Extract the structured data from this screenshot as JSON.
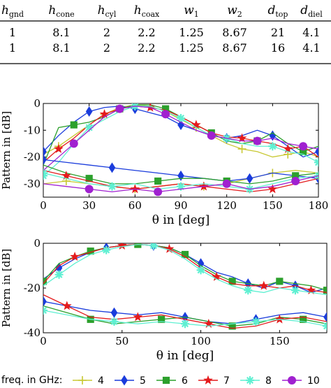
{
  "table": {
    "headers": [
      {
        "base": "h",
        "sub": "gnd"
      },
      {
        "base": "h",
        "sub": "cone"
      },
      {
        "base": "h",
        "sub": "cyl"
      },
      {
        "base": "h",
        "sub": "coax"
      },
      {
        "base": "w",
        "sub": "1"
      },
      {
        "base": "w",
        "sub": "2"
      },
      {
        "base": "d",
        "sub": "top"
      },
      {
        "base": "d",
        "sub": "diel"
      }
    ],
    "rows": [
      [
        "1",
        "8.1",
        "2",
        "2.2",
        "1.25",
        "8.67",
        "21",
        "4.1"
      ],
      [
        "1",
        "8.1",
        "2",
        "2.2",
        "1.25",
        "8.67",
        "16",
        "4.1"
      ]
    ]
  },
  "legend": {
    "label": "freq. in GHz:",
    "entries": [
      {
        "label": "4",
        "color": "#c8c832",
        "marker": "plus"
      },
      {
        "label": "5",
        "color": "#1a3cdc",
        "marker": "diamond"
      },
      {
        "label": "6",
        "color": "#2ca02c",
        "marker": "square"
      },
      {
        "label": "7",
        "color": "#e41a1c",
        "marker": "star"
      },
      {
        "label": "8",
        "color": "#5ff0d2",
        "marker": "asterisk"
      },
      {
        "label": "10",
        "color": "#a020d0",
        "marker": "circle"
      }
    ]
  },
  "chart_data": [
    {
      "type": "line",
      "xlabel": "θ in [deg]",
      "ylabel": "Pattern in [dB]",
      "xlim": [
        0,
        180
      ],
      "ylim": [
        -35,
        0
      ],
      "xticks": [
        0,
        30,
        60,
        90,
        120,
        150,
        180
      ],
      "yticks": [
        0,
        -10,
        -20,
        -30
      ],
      "grid": false,
      "series": [
        {
          "name": "4",
          "color": "#c8c832",
          "marker": "plus",
          "x": [
            0,
            10,
            20,
            30,
            40,
            50,
            60,
            70,
            80,
            90,
            100,
            110,
            120,
            130,
            140,
            150,
            160,
            170,
            180
          ],
          "y": [
            -19,
            -16,
            -12,
            -8,
            -4,
            -1.5,
            -0.5,
            -1,
            -3,
            -6,
            -9,
            -12,
            -15,
            -17,
            -18,
            -20,
            -19,
            -18,
            -20
          ]
        },
        {
          "name": "5",
          "color": "#1a3cdc",
          "marker": "diamond",
          "x": [
            0,
            10,
            20,
            30,
            40,
            50,
            60,
            70,
            80,
            90,
            100,
            110,
            120,
            130,
            140,
            150,
            160,
            170,
            180
          ],
          "y": [
            -18,
            -12,
            -7,
            -3,
            -1.5,
            -1,
            -2,
            -3.5,
            -5,
            -8,
            -10,
            -12,
            -13,
            -12,
            -10,
            -12,
            -16,
            -20,
            -18
          ]
        },
        {
          "name": "6",
          "color": "#2ca02c",
          "marker": "square",
          "x": [
            0,
            10,
            20,
            30,
            40,
            50,
            60,
            70,
            80,
            90,
            100,
            110,
            120,
            130,
            140,
            150,
            160,
            170,
            180
          ],
          "y": [
            -23,
            -9,
            -8,
            -7,
            -5,
            -2,
            -0.5,
            -0.5,
            -2,
            -5,
            -8,
            -11,
            -14,
            -15,
            -14,
            -11,
            -15,
            -18,
            -16
          ]
        },
        {
          "name": "7",
          "color": "#e41a1c",
          "marker": "star",
          "x": [
            0,
            10,
            20,
            30,
            40,
            50,
            60,
            70,
            80,
            90,
            100,
            110,
            120,
            130,
            140,
            150,
            160,
            170,
            180
          ],
          "y": [
            -22,
            -17,
            -13,
            -8,
            -4,
            -2,
            -1,
            -1.5,
            -2.5,
            -5,
            -8,
            -11,
            -12.5,
            -13,
            -14,
            -15,
            -17,
            -16,
            -20
          ]
        },
        {
          "name": "8",
          "color": "#5ff0d2",
          "marker": "asterisk",
          "x": [
            0,
            10,
            20,
            30,
            40,
            50,
            60,
            70,
            80,
            90,
            100,
            110,
            120,
            130,
            140,
            150,
            160,
            170,
            180
          ],
          "y": [
            -27,
            -22,
            -15,
            -9,
            -6,
            -3,
            -1,
            -1,
            -3,
            -5.5,
            -9,
            -12,
            -13,
            -15,
            -16,
            -16,
            -18,
            -19,
            -22
          ]
        },
        {
          "name": "10",
          "color": "#a020d0",
          "marker": "circle",
          "x": [
            0,
            10,
            20,
            30,
            40,
            50,
            60,
            70,
            80,
            90,
            100,
            110,
            120,
            130,
            140,
            150,
            160,
            170,
            180
          ],
          "y": [
            -25,
            -20,
            -15,
            -10,
            -5,
            -2,
            -1,
            -1.5,
            -4,
            -7,
            -10,
            -12,
            -13,
            -14,
            -14,
            -13,
            -15,
            -16,
            -17
          ]
        },
        {
          "name": "4",
          "color": "#c8c832",
          "marker": "plus",
          "x": [
            0,
            15,
            30,
            45,
            60,
            75,
            90,
            105,
            120,
            135,
            150,
            165,
            180
          ],
          "y": [
            -30,
            -29,
            -30,
            -31,
            -32,
            -31,
            -30,
            -31,
            -30,
            -28,
            -26,
            -25,
            -26
          ]
        },
        {
          "name": "5",
          "color": "#1a3cdc",
          "marker": "diamond",
          "x": [
            0,
            15,
            30,
            45,
            60,
            75,
            90,
            105,
            120,
            135,
            150,
            165,
            180
          ],
          "y": [
            -21,
            -22,
            -23,
            -24,
            -25,
            -26,
            -27,
            -28,
            -29,
            -28,
            -26,
            -27,
            -28
          ]
        },
        {
          "name": "6",
          "color": "#2ca02c",
          "marker": "square",
          "x": [
            0,
            15,
            30,
            45,
            60,
            75,
            90,
            105,
            120,
            135,
            150,
            165,
            180
          ],
          "y": [
            -23,
            -26,
            -28,
            -30,
            -30,
            -29,
            -28,
            -28,
            -29,
            -30,
            -29,
            -27,
            -26
          ]
        },
        {
          "name": "7",
          "color": "#e41a1c",
          "marker": "star",
          "x": [
            0,
            15,
            30,
            45,
            60,
            75,
            90,
            105,
            120,
            135,
            150,
            165,
            180
          ],
          "y": [
            -25,
            -27,
            -29,
            -31,
            -32,
            -31,
            -30,
            -31,
            -32,
            -33,
            -32,
            -30,
            -28
          ]
        },
        {
          "name": "8",
          "color": "#5ff0d2",
          "marker": "asterisk",
          "x": [
            0,
            15,
            30,
            45,
            60,
            75,
            90,
            105,
            120,
            135,
            150,
            165,
            180
          ],
          "y": [
            -26,
            -28,
            -30,
            -31,
            -30,
            -32,
            -31,
            -30,
            -31,
            -32,
            -30,
            -28,
            -27
          ]
        },
        {
          "name": "10",
          "color": "#a020d0",
          "marker": "circle",
          "x": [
            0,
            15,
            30,
            45,
            60,
            75,
            90,
            105,
            120,
            135,
            150,
            165,
            180
          ],
          "y": [
            -30,
            -31,
            -32,
            -33,
            -32,
            -33,
            -32,
            -31,
            -30,
            -32,
            -31,
            -29,
            -27
          ]
        }
      ]
    },
    {
      "type": "line",
      "xlabel": "θ in [deg]",
      "ylabel": "Pattern in [dB]",
      "xlim": [
        0,
        180
      ],
      "ylim": [
        -40,
        0
      ],
      "xticks": [
        0,
        50,
        100,
        150
      ],
      "yticks": [
        0,
        -20,
        -40
      ],
      "grid": false,
      "series": [
        {
          "name": "5",
          "color": "#1a3cdc",
          "marker": "diamond",
          "x": [
            0,
            10,
            20,
            30,
            40,
            50,
            60,
            70,
            80,
            90,
            100,
            110,
            120,
            130,
            140,
            150,
            160,
            170,
            180
          ],
          "y": [
            -16,
            -11,
            -7,
            -4,
            -2,
            -1,
            -0.5,
            -1,
            -2,
            -5,
            -9,
            -13,
            -15,
            -18,
            -20,
            -17,
            -19,
            -22,
            -20
          ]
        },
        {
          "name": "6",
          "color": "#2ca02c",
          "marker": "square",
          "x": [
            0,
            10,
            20,
            30,
            40,
            50,
            60,
            70,
            80,
            90,
            100,
            110,
            120,
            130,
            140,
            150,
            160,
            170,
            180
          ],
          "y": [
            -17,
            -9,
            -6,
            -3.5,
            -2,
            -1,
            -0.5,
            -1,
            -2,
            -5,
            -10,
            -14,
            -17,
            -18,
            -19,
            -17,
            -18,
            -19,
            -21
          ]
        },
        {
          "name": "7",
          "color": "#e41a1c",
          "marker": "star",
          "x": [
            0,
            10,
            20,
            30,
            40,
            50,
            60,
            70,
            80,
            90,
            100,
            110,
            120,
            130,
            140,
            150,
            160,
            170,
            180
          ],
          "y": [
            -18,
            -10,
            -6,
            -4,
            -2,
            -1,
            -0.5,
            -1,
            -2.5,
            -6,
            -11,
            -15,
            -18,
            -19,
            -19,
            -20,
            -19,
            -21,
            -22
          ]
        },
        {
          "name": "8",
          "color": "#5ff0d2",
          "marker": "asterisk",
          "x": [
            0,
            10,
            20,
            30,
            40,
            50,
            60,
            70,
            80,
            90,
            100,
            110,
            120,
            130,
            140,
            150,
            160,
            170,
            180
          ],
          "y": [
            -19,
            -14,
            -9,
            -5,
            -3,
            -1.5,
            -0.5,
            -1,
            -3,
            -7,
            -12,
            -16,
            -19,
            -21,
            -22,
            -20,
            -21,
            -22,
            -23
          ]
        },
        {
          "name": "5",
          "color": "#1a3cdc",
          "marker": "diamond",
          "x": [
            0,
            15,
            30,
            45,
            60,
            75,
            90,
            105,
            120,
            135,
            150,
            165,
            180
          ],
          "y": [
            -26,
            -28,
            -30,
            -31,
            -32,
            -31,
            -33,
            -35,
            -36,
            -34,
            -32,
            -31,
            -33
          ]
        },
        {
          "name": "6",
          "color": "#2ca02c",
          "marker": "square",
          "x": [
            0,
            15,
            30,
            45,
            60,
            75,
            90,
            105,
            120,
            135,
            150,
            165,
            180
          ],
          "y": [
            -28,
            -31,
            -34,
            -36,
            -35,
            -34,
            -33,
            -35,
            -37,
            -36,
            -33,
            -34,
            -36
          ]
        },
        {
          "name": "7",
          "color": "#e41a1c",
          "marker": "star",
          "x": [
            0,
            15,
            30,
            45,
            60,
            75,
            90,
            105,
            120,
            135,
            150,
            165,
            180
          ],
          "y": [
            -23,
            -28,
            -33,
            -34,
            -33,
            -32,
            -34,
            -36,
            -38,
            -37,
            -34,
            -33,
            -35
          ]
        },
        {
          "name": "8",
          "color": "#5ff0d2",
          "marker": "asterisk",
          "x": [
            0,
            15,
            30,
            45,
            60,
            75,
            90,
            105,
            120,
            135,
            150,
            165,
            180
          ],
          "y": [
            -30,
            -32,
            -34,
            -35,
            -36,
            -35,
            -36,
            -37,
            -36,
            -35,
            -34,
            -35,
            -37
          ]
        }
      ]
    }
  ]
}
